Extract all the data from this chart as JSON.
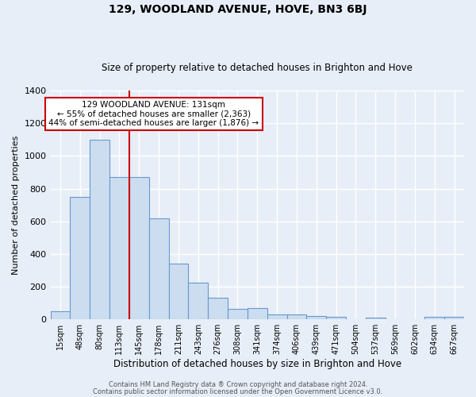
{
  "title": "129, WOODLAND AVENUE, HOVE, BN3 6BJ",
  "subtitle": "Size of property relative to detached houses in Brighton and Hove",
  "xlabel": "Distribution of detached houses by size in Brighton and Hove",
  "ylabel": "Number of detached properties",
  "footer1": "Contains HM Land Registry data ® Crown copyright and database right 2024.",
  "footer2": "Contains public sector information licensed under the Open Government Licence v3.0.",
  "categories": [
    "15sqm",
    "48sqm",
    "80sqm",
    "113sqm",
    "145sqm",
    "178sqm",
    "211sqm",
    "243sqm",
    "276sqm",
    "308sqm",
    "341sqm",
    "374sqm",
    "406sqm",
    "439sqm",
    "471sqm",
    "504sqm",
    "537sqm",
    "569sqm",
    "602sqm",
    "634sqm",
    "667sqm"
  ],
  "values": [
    50,
    750,
    1100,
    870,
    870,
    620,
    340,
    225,
    130,
    65,
    70,
    30,
    30,
    20,
    15,
    0,
    10,
    0,
    0,
    15,
    15
  ],
  "bar_color": "#ccddf0",
  "bar_edge_color": "#6699cc",
  "bg_color": "#e8eef8",
  "grid_color": "#ffffff",
  "vline_x": 3.5,
  "vline_color": "#cc0000",
  "annotation_text": "129 WOODLAND AVENUE: 131sqm\n← 55% of detached houses are smaller (2,363)\n44% of semi-detached houses are larger (1,876) →",
  "annotation_box_color": "#ffffff",
  "annotation_box_edge": "#cc0000",
  "ylim": [
    0,
    1400
  ],
  "yticks": [
    0,
    200,
    400,
    600,
    800,
    1000,
    1200,
    1400
  ]
}
